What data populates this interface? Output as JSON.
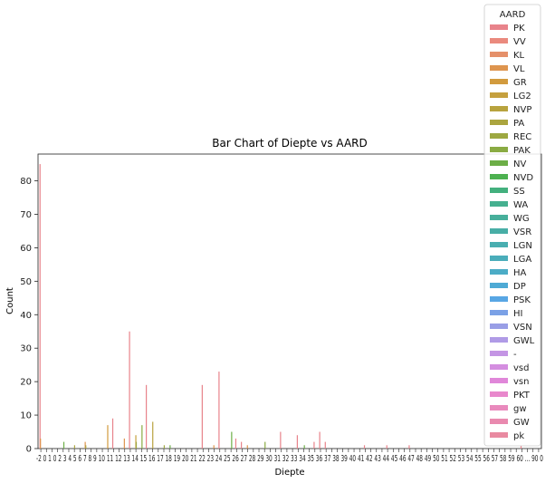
{
  "chart_data": {
    "type": "bar",
    "title": "Bar Chart of Diepte vs AARD",
    "xlabel": "Diepte",
    "ylabel": "Count",
    "ylim": [
      0,
      88
    ],
    "yticks": [
      0,
      10,
      20,
      30,
      40,
      50,
      60,
      70,
      80
    ],
    "grid": false,
    "legend": {
      "title": "AARD",
      "placement": "top-right"
    },
    "x_tick_text": "-2 0 1 0 2 3 4 5 6 7 8 9 10 11 12 13 14 15 16 17 18 19 20 21 22 23 24 25 26 27 28 29 30 31 32 33 34 35 36 37 38 39 40 41 42 43 44 45 46 47 48 49 50 51 52 53 54 55 56 57 58 59 60 ... 90 0",
    "num_x_slots": 90,
    "series": [
      {
        "name": "PK",
        "color": "#e8838b"
      },
      {
        "name": "VV",
        "color": "#ea8a7e"
      },
      {
        "name": "KL",
        "color": "#e5906a"
      },
      {
        "name": "VL",
        "color": "#de954f"
      },
      {
        "name": "GR",
        "color": "#d29b3e"
      },
      {
        "name": "LG2",
        "color": "#c5a03e"
      },
      {
        "name": "NVP",
        "color": "#b8a33e"
      },
      {
        "name": "PA",
        "color": "#aba53f"
      },
      {
        "name": "REC",
        "color": "#9da841"
      },
      {
        "name": "PAK",
        "color": "#8aab43"
      },
      {
        "name": "NV",
        "color": "#6cae47"
      },
      {
        "name": "NVD",
        "color": "#4db150"
      },
      {
        "name": "SS",
        "color": "#43b07e"
      },
      {
        "name": "WA",
        "color": "#45b08f"
      },
      {
        "name": "WG",
        "color": "#47af9b"
      },
      {
        "name": "VSR",
        "color": "#48aea6"
      },
      {
        "name": "LGN",
        "color": "#49aeb0"
      },
      {
        "name": "LGA",
        "color": "#4aadba"
      },
      {
        "name": "HA",
        "color": "#4cacc6"
      },
      {
        "name": "DP",
        "color": "#4eaad5"
      },
      {
        "name": "PSK",
        "color": "#58a6e4"
      },
      {
        "name": "HI",
        "color": "#7ba1e6"
      },
      {
        "name": "VSN",
        "color": "#999ee6"
      },
      {
        "name": "GWL",
        "color": "#b09be6"
      },
      {
        "name": "-",
        "color": "#c495e4"
      },
      {
        "name": "vsd",
        "color": "#d48ee0"
      },
      {
        "name": "vsn",
        "color": "#e087d9"
      },
      {
        "name": "PKT",
        "color": "#e888cc"
      },
      {
        "name": "gw",
        "color": "#e98abd"
      },
      {
        "name": "GW",
        "color": "#e98aaf"
      },
      {
        "name": "pk",
        "color": "#e98aa1"
      }
    ],
    "bars": [
      {
        "x": 0,
        "series": "PK",
        "value": 85
      },
      {
        "x": 0,
        "series": "VL",
        "value": 3
      },
      {
        "x": 4,
        "series": "NV",
        "value": 2
      },
      {
        "x": 6,
        "series": "PA",
        "value": 1
      },
      {
        "x": 8,
        "series": "VL",
        "value": 2
      },
      {
        "x": 8,
        "series": "PA",
        "value": 1
      },
      {
        "x": 12,
        "series": "GR",
        "value": 7
      },
      {
        "x": 13,
        "series": "PK",
        "value": 9
      },
      {
        "x": 15,
        "series": "VL",
        "value": 3
      },
      {
        "x": 16,
        "series": "PK",
        "value": 35
      },
      {
        "x": 17,
        "series": "LG2",
        "value": 4
      },
      {
        "x": 17,
        "series": "REC",
        "value": 2
      },
      {
        "x": 18,
        "series": "PAK",
        "value": 7
      },
      {
        "x": 19,
        "series": "PK",
        "value": 19
      },
      {
        "x": 20,
        "series": "NVP",
        "value": 8
      },
      {
        "x": 22,
        "series": "REC",
        "value": 1
      },
      {
        "x": 23,
        "series": "NV",
        "value": 1
      },
      {
        "x": 29,
        "series": "PK",
        "value": 19
      },
      {
        "x": 31,
        "series": "VL",
        "value": 1
      },
      {
        "x": 32,
        "series": "PK",
        "value": 23
      },
      {
        "x": 34,
        "series": "NV",
        "value": 5
      },
      {
        "x": 35,
        "series": "PK",
        "value": 3
      },
      {
        "x": 36,
        "series": "PK",
        "value": 2
      },
      {
        "x": 37,
        "series": "VL",
        "value": 1
      },
      {
        "x": 40,
        "series": "PAK",
        "value": 2
      },
      {
        "x": 43,
        "series": "PK",
        "value": 5
      },
      {
        "x": 46,
        "series": "PK",
        "value": 4
      },
      {
        "x": 47,
        "series": "NV",
        "value": 1
      },
      {
        "x": 49,
        "series": "PK",
        "value": 2
      },
      {
        "x": 50,
        "series": "PK",
        "value": 5
      },
      {
        "x": 51,
        "series": "PK",
        "value": 2
      },
      {
        "x": 58,
        "series": "PK",
        "value": 1
      },
      {
        "x": 62,
        "series": "PK",
        "value": 1
      },
      {
        "x": 66,
        "series": "PK",
        "value": 1
      },
      {
        "x": 86,
        "series": "PK",
        "value": 1
      }
    ]
  }
}
